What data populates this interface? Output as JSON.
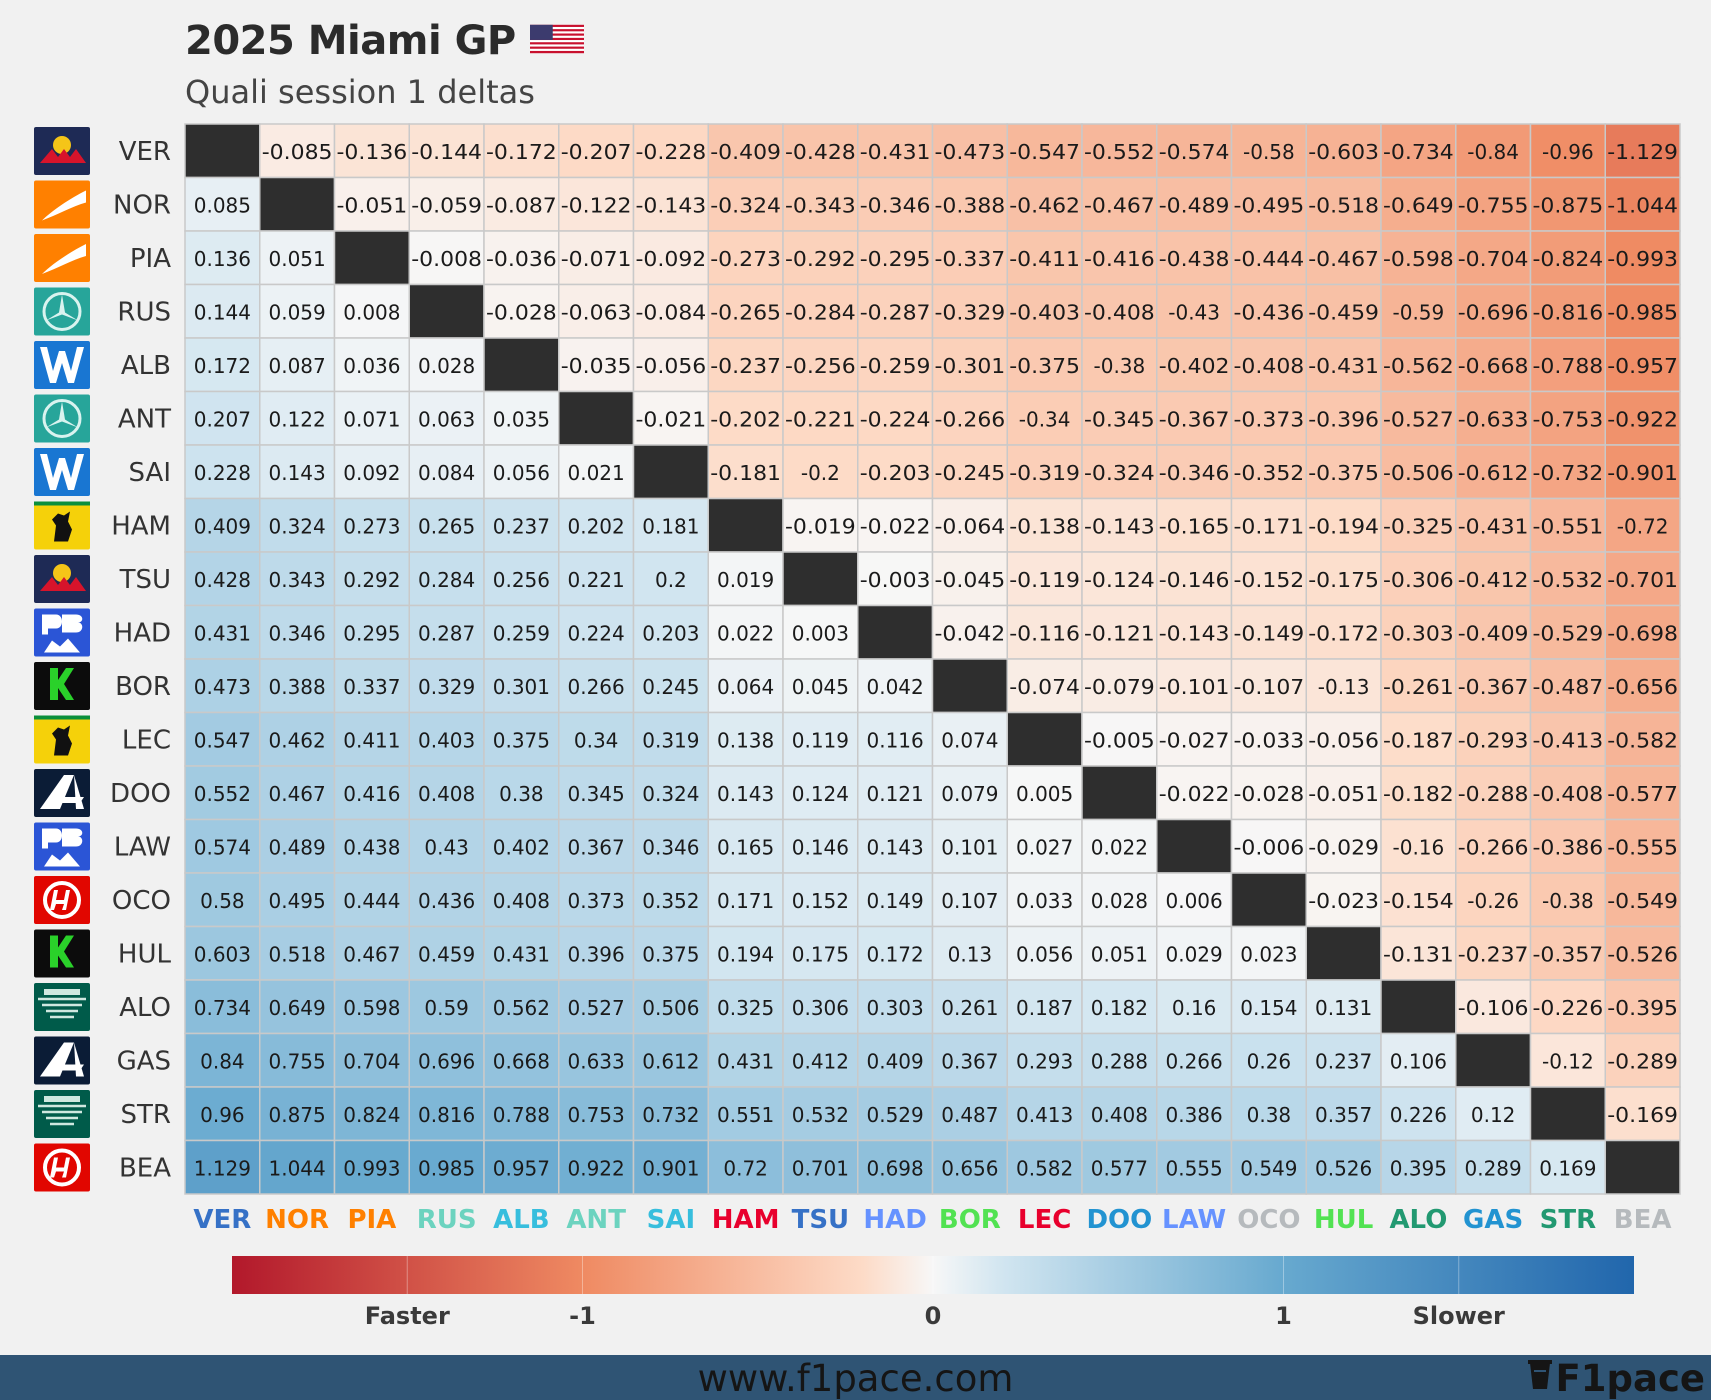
{
  "title": "2025 Miami GP",
  "subtitle": "Quali session 1 deltas",
  "footer": {
    "url": "www.f1pace.com",
    "brand": "F1pace"
  },
  "colors": {
    "faster": "#b2182b",
    "slower": "#2166ac",
    "diagonal": "#2e2e2e"
  },
  "chart_data": {
    "type": "heatmap",
    "title": "2025 Miami GP",
    "subtitle": "Quali session 1 deltas",
    "rows": [
      "VER",
      "NOR",
      "PIA",
      "RUS",
      "ALB",
      "ANT",
      "SAI",
      "HAM",
      "TSU",
      "HAD",
      "BOR",
      "LEC",
      "DOO",
      "LAW",
      "OCO",
      "HUL",
      "ALO",
      "GAS",
      "STR",
      "BEA"
    ],
    "columns": [
      "VER",
      "NOR",
      "PIA",
      "RUS",
      "ALB",
      "ANT",
      "SAI",
      "HAM",
      "TSU",
      "HAD",
      "BOR",
      "LEC",
      "DOO",
      "LAW",
      "OCO",
      "HUL",
      "ALO",
      "GAS",
      "STR",
      "BEA"
    ],
    "teams": [
      "redbull",
      "mclaren",
      "mclaren",
      "mercedes",
      "williams",
      "mercedes",
      "williams",
      "ferrari",
      "redbull",
      "rb",
      "sauber",
      "ferrari",
      "alpine",
      "rb",
      "haas",
      "sauber",
      "astonmartin",
      "alpine",
      "astonmartin",
      "haas"
    ],
    "column_label_colors": [
      "#3671C6",
      "#FF8000",
      "#FF8000",
      "#6CD3BF",
      "#37BEDD",
      "#6CD3BF",
      "#37BEDD",
      "#E8002D",
      "#3671C6",
      "#6692FF",
      "#52E252",
      "#E8002D",
      "#2293D1",
      "#6692FF",
      "#B6BABD",
      "#52E252",
      "#229971",
      "#2293D1",
      "#229971",
      "#B6BABD"
    ],
    "values": [
      [
        null,
        -0.085,
        -0.136,
        -0.144,
        -0.172,
        -0.207,
        -0.228,
        -0.409,
        -0.428,
        -0.431,
        -0.473,
        -0.547,
        -0.552,
        -0.574,
        -0.58,
        -0.603,
        -0.734,
        -0.84,
        -0.96,
        -1.129
      ],
      [
        0.085,
        null,
        -0.051,
        -0.059,
        -0.087,
        -0.122,
        -0.143,
        -0.324,
        -0.343,
        -0.346,
        -0.388,
        -0.462,
        -0.467,
        -0.489,
        -0.495,
        -0.518,
        -0.649,
        -0.755,
        -0.875,
        -1.044
      ],
      [
        0.136,
        0.051,
        null,
        -0.008,
        -0.036,
        -0.071,
        -0.092,
        -0.273,
        -0.292,
        -0.295,
        -0.337,
        -0.411,
        -0.416,
        -0.438,
        -0.444,
        -0.467,
        -0.598,
        -0.704,
        -0.824,
        -0.993
      ],
      [
        0.144,
        0.059,
        0.008,
        null,
        -0.028,
        -0.063,
        -0.084,
        -0.265,
        -0.284,
        -0.287,
        -0.329,
        -0.403,
        -0.408,
        -0.43,
        -0.436,
        -0.459,
        -0.59,
        -0.696,
        -0.816,
        -0.985
      ],
      [
        0.172,
        0.087,
        0.036,
        0.028,
        null,
        -0.035,
        -0.056,
        -0.237,
        -0.256,
        -0.259,
        -0.301,
        -0.375,
        -0.38,
        -0.402,
        -0.408,
        -0.431,
        -0.562,
        -0.668,
        -0.788,
        -0.957
      ],
      [
        0.207,
        0.122,
        0.071,
        0.063,
        0.035,
        null,
        -0.021,
        -0.202,
        -0.221,
        -0.224,
        -0.266,
        -0.34,
        -0.345,
        -0.367,
        -0.373,
        -0.396,
        -0.527,
        -0.633,
        -0.753,
        -0.922
      ],
      [
        0.228,
        0.143,
        0.092,
        0.084,
        0.056,
        0.021,
        null,
        -0.181,
        -0.2,
        -0.203,
        -0.245,
        -0.319,
        -0.324,
        -0.346,
        -0.352,
        -0.375,
        -0.506,
        -0.612,
        -0.732,
        -0.901
      ],
      [
        0.409,
        0.324,
        0.273,
        0.265,
        0.237,
        0.202,
        0.181,
        null,
        -0.019,
        -0.022,
        -0.064,
        -0.138,
        -0.143,
        -0.165,
        -0.171,
        -0.194,
        -0.325,
        -0.431,
        -0.551,
        -0.72
      ],
      [
        0.428,
        0.343,
        0.292,
        0.284,
        0.256,
        0.221,
        0.2,
        0.019,
        null,
        -0.003,
        -0.045,
        -0.119,
        -0.124,
        -0.146,
        -0.152,
        -0.175,
        -0.306,
        -0.412,
        -0.532,
        -0.701
      ],
      [
        0.431,
        0.346,
        0.295,
        0.287,
        0.259,
        0.224,
        0.203,
        0.022,
        0.003,
        null,
        -0.042,
        -0.116,
        -0.121,
        -0.143,
        -0.149,
        -0.172,
        -0.303,
        -0.409,
        -0.529,
        -0.698
      ],
      [
        0.473,
        0.388,
        0.337,
        0.329,
        0.301,
        0.266,
        0.245,
        0.064,
        0.045,
        0.042,
        null,
        -0.074,
        -0.079,
        -0.101,
        -0.107,
        -0.13,
        -0.261,
        -0.367,
        -0.487,
        -0.656
      ],
      [
        0.547,
        0.462,
        0.411,
        0.403,
        0.375,
        0.34,
        0.319,
        0.138,
        0.119,
        0.116,
        0.074,
        null,
        -0.005,
        -0.027,
        -0.033,
        -0.056,
        -0.187,
        -0.293,
        -0.413,
        -0.582
      ],
      [
        0.552,
        0.467,
        0.416,
        0.408,
        0.38,
        0.345,
        0.324,
        0.143,
        0.124,
        0.121,
        0.079,
        0.005,
        null,
        -0.022,
        -0.028,
        -0.051,
        -0.182,
        -0.288,
        -0.408,
        -0.577
      ],
      [
        0.574,
        0.489,
        0.438,
        0.43,
        0.402,
        0.367,
        0.346,
        0.165,
        0.146,
        0.143,
        0.101,
        0.027,
        0.022,
        null,
        -0.006,
        -0.029,
        -0.16,
        -0.266,
        -0.386,
        -0.555
      ],
      [
        0.58,
        0.495,
        0.444,
        0.436,
        0.408,
        0.373,
        0.352,
        0.171,
        0.152,
        0.149,
        0.107,
        0.033,
        0.028,
        0.006,
        null,
        -0.023,
        -0.154,
        -0.26,
        -0.38,
        -0.549
      ],
      [
        0.603,
        0.518,
        0.467,
        0.459,
        0.431,
        0.396,
        0.375,
        0.194,
        0.175,
        0.172,
        0.13,
        0.056,
        0.051,
        0.029,
        0.023,
        null,
        -0.131,
        -0.237,
        -0.357,
        -0.526
      ],
      [
        0.734,
        0.649,
        0.598,
        0.59,
        0.562,
        0.527,
        0.506,
        0.325,
        0.306,
        0.303,
        0.261,
        0.187,
        0.182,
        0.16,
        0.154,
        0.131,
        null,
        -0.106,
        -0.226,
        -0.395
      ],
      [
        0.84,
        0.755,
        0.704,
        0.696,
        0.668,
        0.633,
        0.612,
        0.431,
        0.412,
        0.409,
        0.367,
        0.293,
        0.288,
        0.266,
        0.26,
        0.237,
        0.106,
        null,
        -0.12,
        -0.289
      ],
      [
        0.96,
        0.875,
        0.824,
        0.816,
        0.788,
        0.753,
        0.732,
        0.551,
        0.532,
        0.529,
        0.487,
        0.413,
        0.408,
        0.386,
        0.38,
        0.357,
        0.226,
        0.12,
        null,
        -0.169
      ],
      [
        1.129,
        1.044,
        0.993,
        0.985,
        0.957,
        0.922,
        0.901,
        0.72,
        0.701,
        0.698,
        0.656,
        0.582,
        0.577,
        0.555,
        0.549,
        0.526,
        0.395,
        0.289,
        0.169,
        null
      ]
    ],
    "colorbar": {
      "range": [
        -2,
        2
      ],
      "ticks": [
        {
          "value": -1.5,
          "label": "Faster"
        },
        {
          "value": -1,
          "label": "-1"
        },
        {
          "value": 0,
          "label": "0"
        },
        {
          "value": 1,
          "label": "1"
        },
        {
          "value": 1.5,
          "label": "Slower"
        }
      ]
    }
  }
}
